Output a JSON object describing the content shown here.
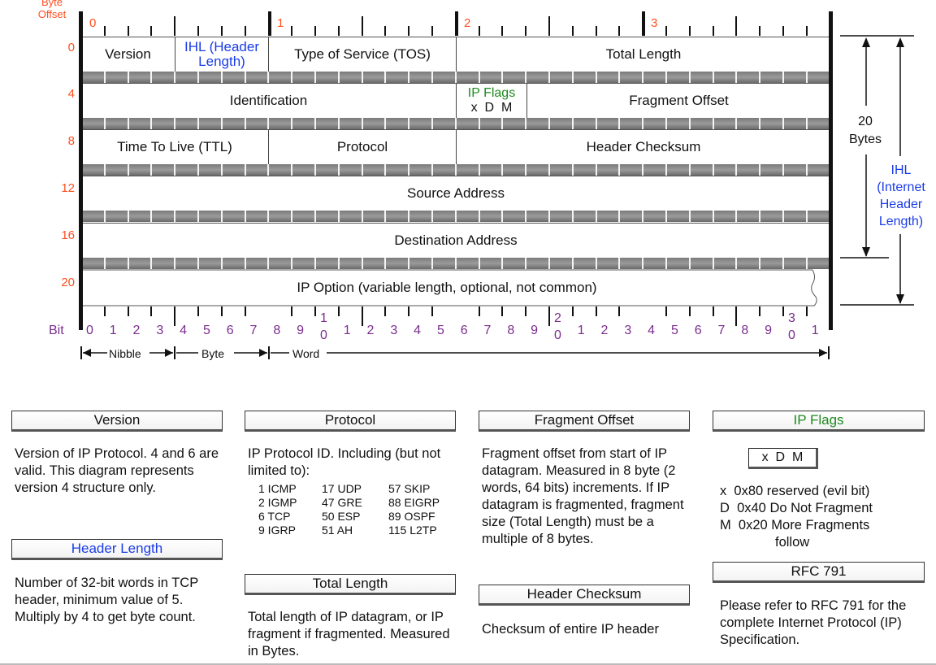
{
  "header": {
    "byte_offset_label": "Byte Offset",
    "byte_numbers": [
      "0",
      "1",
      "2",
      "3"
    ],
    "row_offsets": [
      "0",
      "4",
      "8",
      "12",
      "16",
      "20"
    ]
  },
  "fields": {
    "version": "Version",
    "ihl": "IHL (Header Length)",
    "tos": "Type of Service (TOS)",
    "total_length": "Total Length",
    "identification": "Identification",
    "ip_flags": "IP Flags",
    "ip_flags_bits": "x  D  M",
    "fragment_offset": "Fragment Offset",
    "ttl": "Time To Live (TTL)",
    "protocol": "Protocol",
    "header_checksum": "Header Checksum",
    "source_address": "Source Address",
    "destination_address": "Destination Address",
    "ip_option": "IP Option (variable length, optional, not common)"
  },
  "side": {
    "bytes_20": "20 Bytes",
    "ihl": "IHL (Internet Header Length)"
  },
  "bits": {
    "label": "Bit",
    "single": [
      "0",
      "1",
      "2",
      "3",
      "4",
      "5",
      "6",
      "7",
      "8",
      "9",
      "1",
      "2",
      "3",
      "4",
      "5",
      "6",
      "7",
      "8",
      "9",
      "1",
      "2",
      "3",
      "4",
      "5",
      "6",
      "7",
      "8",
      "9",
      "1"
    ],
    "tens_top": [
      "1",
      "2",
      "3"
    ],
    "tens_bottom": [
      "0",
      "0",
      "0"
    ]
  },
  "scale": {
    "nibble": "Nibble",
    "byte": "Byte",
    "word": "Word"
  },
  "legend": {
    "version": {
      "title": "Version",
      "text": "Version of IP Protocol.  4 and 6 are valid.  This diagram represents version 4 structure only."
    },
    "header_length": {
      "title": "Header Length",
      "text": "Number of 32-bit words in TCP header, minimum value of 5.  Multiply by 4 to get byte count."
    },
    "protocol": {
      "title": "Protocol",
      "text": "IP Protocol ID.  Including (but not limited to):",
      "entries": [
        "1 ICMP",
        "17 UDP",
        "57 SKIP",
        "2 IGMP",
        "47 GRE",
        "88 EIGRP",
        "6 TCP",
        "50 ESP",
        "89 OSPF",
        "9 IGRP",
        "51 AH",
        "115 L2TP"
      ]
    },
    "total_length": {
      "title": "Total Length",
      "text": "Total length of IP datagram, or IP fragment if fragmented.  Measured in Bytes."
    },
    "fragment_offset": {
      "title": "Fragment Offset",
      "text": "Fragment offset from start of IP datagram.  Measured in 8 byte (2 words, 64 bits) increments.  If IP datagram is fragmented, fragment size (Total Length) must be a multiple of 8 bytes."
    },
    "header_checksum": {
      "title": "Header Checksum",
      "text": "Checksum of entire IP header"
    },
    "ip_flags": {
      "title": "IP Flags",
      "box": "x  D  M",
      "lines": [
        "x  0x80 reserved (evil bit)",
        "D  0x40 Do Not Fragment",
        "M  0x20 More Fragments",
        "follow"
      ]
    },
    "rfc": {
      "title": "RFC 791",
      "text": "Please refer to RFC 791 for the complete Internet Protocol (IP) Specification."
    }
  },
  "colors": {
    "offset": "#ff4f1f",
    "bits": "#7b2d8e",
    "ihl": "#1a3ce6",
    "flags": "#1e8a1e"
  }
}
